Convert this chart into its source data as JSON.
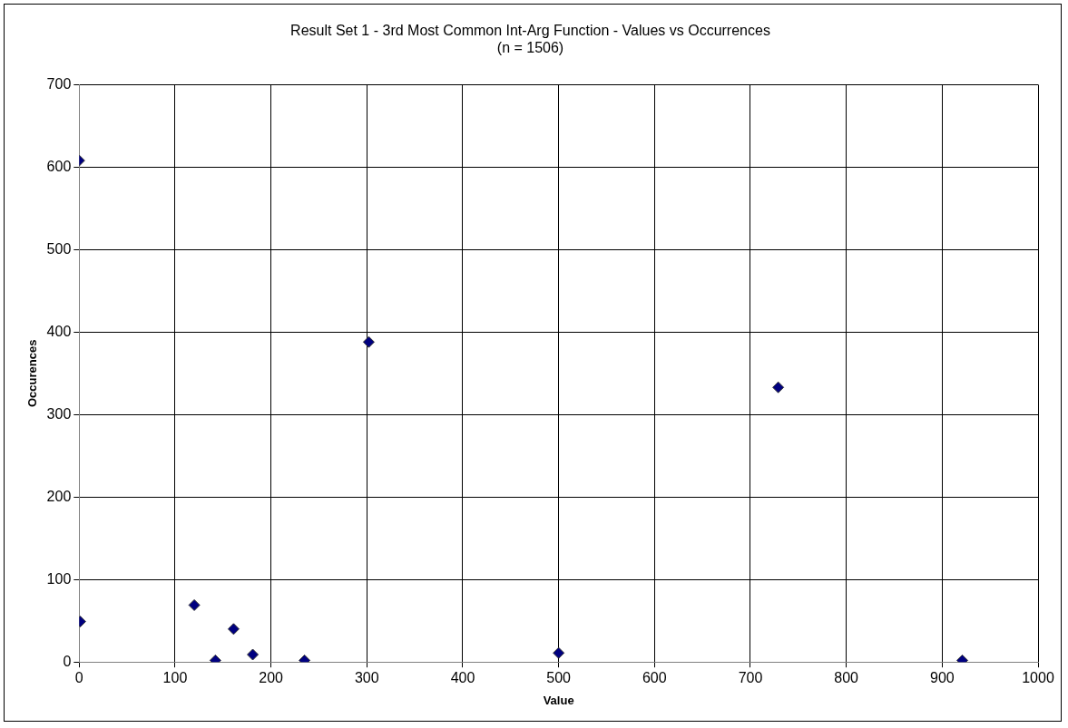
{
  "chart_data": {
    "type": "scatter",
    "title": "Result Set 1 - 3rd Most Common Int-Arg Function - Values vs Occurrences",
    "subtitle": "(n = 1506)",
    "xlabel": "Value",
    "ylabel": "Occurences",
    "x": [
      0,
      1,
      120,
      142,
      161,
      181,
      235,
      302,
      500,
      729,
      921
    ],
    "series": [
      {
        "color": "#000080",
        "values": [
          608,
          49,
          69,
          2,
          40,
          9,
          2,
          388,
          11,
          333,
          2
        ]
      }
    ],
    "xlim": [
      0,
      1000
    ],
    "xticks": [
      0,
      100,
      200,
      300,
      400,
      500,
      600,
      700,
      800,
      900,
      1000
    ],
    "ylim": [
      0,
      700
    ],
    "yticks": [
      0,
      100,
      200,
      300,
      400,
      500,
      600,
      700
    ],
    "grid": true,
    "legend": false,
    "marker": "diamond"
  }
}
